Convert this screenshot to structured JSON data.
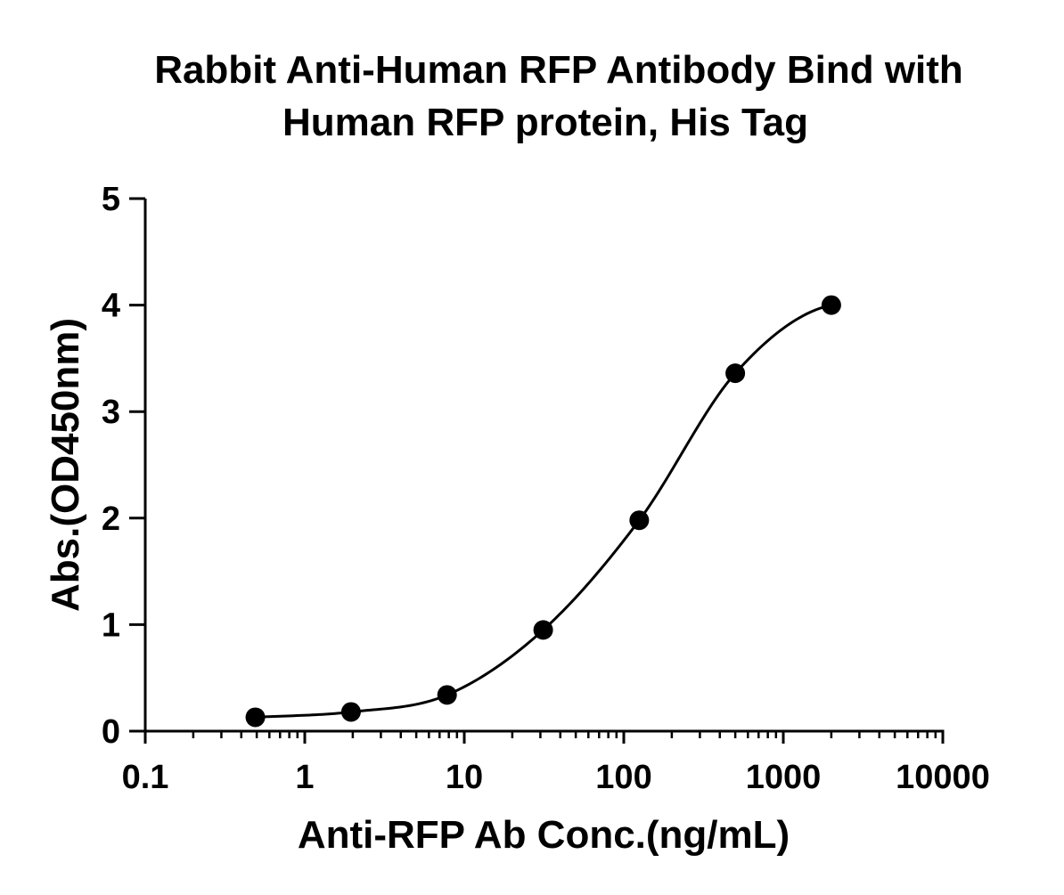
{
  "chart_data": {
    "type": "scatter",
    "title_lines": [
      "Rabbit Anti-Human RFP Antibody Bind with",
      "Human RFP protein, His Tag"
    ],
    "xlabel": "Anti-RFP Ab Conc.(ng/mL)",
    "ylabel": "Abs.(OD450nm)",
    "x_scale": "log",
    "xlim": [
      0.1,
      10000
    ],
    "ylim": [
      0,
      5
    ],
    "x_ticks": [
      0.1,
      1,
      10,
      100,
      1000,
      10000
    ],
    "x_tick_labels": [
      "0.1",
      "1",
      "10",
      "100",
      "1000",
      "10000"
    ],
    "y_ticks": [
      0,
      1,
      2,
      3,
      4,
      5
    ],
    "y_tick_labels": [
      "0",
      "1",
      "2",
      "3",
      "4",
      "5"
    ],
    "grid": false,
    "series": [
      {
        "x": [
          0.49,
          1.95,
          7.8,
          31.25,
          125,
          500,
          2000
        ],
        "y": [
          0.13,
          0.18,
          0.34,
          0.95,
          1.98,
          3.36,
          4.0
        ],
        "fit_curve": "sigmoidal"
      }
    ]
  }
}
